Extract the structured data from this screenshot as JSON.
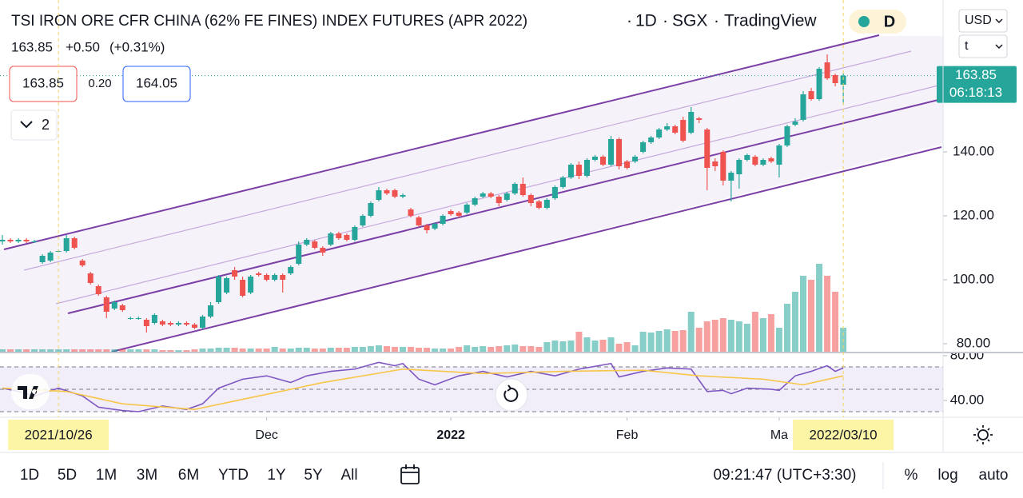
{
  "ui": {
    "symbol": "TSI IRON ORE CFR CHINA (62% FE FINES) INDEX FUTURES (APR 2022)",
    "interval": "1D",
    "exchange": "SGX",
    "source": "TradingView",
    "badge": "D",
    "quote": {
      "last": "163.85",
      "change": "+0.50",
      "change_pct": "(+0.31%)"
    },
    "sell": "163.85",
    "spread": "0.20",
    "buy": "164.05",
    "indicators_count": "2",
    "currency": "USD",
    "unit": "t",
    "price_tag": {
      "price": "163.85",
      "countdown": "06:18:13"
    },
    "ranges": [
      "1D",
      "5D",
      "1M",
      "3M",
      "6M",
      "YTD",
      "1Y",
      "5Y",
      "All"
    ],
    "clock": "09:21:47 (UTC+3:30)",
    "percent": "%",
    "log": "log",
    "auto": "auto"
  },
  "chart_data": {
    "type": "candlestick",
    "up_color": "#26a69a",
    "down_color": "#ef5350",
    "open": [
      112,
      112.5,
      112,
      112.5,
      112,
      105.5,
      106,
      109,
      109,
      113,
      106,
      102,
      98,
      94.5,
      91,
      92,
      88,
      88,
      87.5,
      86.5,
      87,
      86.5,
      86,
      86.5,
      86,
      85,
      88.5,
      93,
      96,
      103,
      100,
      96,
      102,
      101.5,
      100,
      101.5,
      102,
      105,
      111,
      112,
      110,
      111,
      114.5,
      114,
      112.5,
      117,
      120,
      125,
      128,
      128,
      126,
      122,
      119.5,
      117,
      116,
      117.5,
      121.5,
      121,
      121,
      123.5,
      126,
      127,
      126,
      125,
      127,
      130,
      126.5,
      124.5,
      122.5,
      125.5,
      129,
      132,
      136,
      132.5,
      137.5,
      138.5,
      136,
      144,
      137,
      137,
      140,
      143,
      144.5,
      147,
      148,
      150,
      146,
      150.5,
      147,
      137,
      140,
      131,
      133,
      137.5,
      138.5,
      136,
      138,
      136,
      142,
      148.5,
      150,
      159,
      156.5,
      168,
      164,
      161
    ],
    "high": [
      114,
      113,
      113,
      113,
      112.5,
      108,
      109,
      109.5,
      114,
      113.5,
      106.5,
      102.5,
      98.5,
      95,
      93.5,
      92.5,
      88.5,
      88.5,
      88,
      89.5,
      87.5,
      87,
      87,
      87,
      86.5,
      89,
      93,
      101.5,
      101,
      104,
      101,
      101.5,
      102.5,
      102,
      102,
      102,
      104.5,
      112,
      113,
      112.5,
      110.5,
      115,
      115,
      114.5,
      117,
      120.5,
      124.5,
      129,
      128.5,
      128.5,
      127,
      122.5,
      120,
      117.5,
      118,
      120.5,
      122,
      121.5,
      124,
      126,
      127.5,
      127.5,
      126.5,
      127.5,
      130.5,
      132,
      127,
      125,
      125.5,
      129.5,
      132.5,
      136.5,
      137,
      138,
      139,
      139,
      145,
      144.5,
      137.5,
      139,
      143.5,
      145,
      147.5,
      149,
      148.5,
      151,
      154,
      151,
      147.5,
      138,
      140.5,
      134,
      138,
      139.5,
      139,
      138,
      138.5,
      142.5,
      148.5,
      150.5,
      159,
      160,
      166.5,
      170.5,
      164.5,
      164.5
    ],
    "low": [
      111,
      111.5,
      111.5,
      111.5,
      111.5,
      105,
      105.5,
      108.5,
      108.5,
      109.5,
      104,
      98.5,
      95,
      88,
      90.5,
      90,
      87.5,
      87.5,
      83.5,
      86,
      85.5,
      85.5,
      85.5,
      85.5,
      84.5,
      84.5,
      88,
      92.5,
      95.5,
      100,
      94.5,
      95.5,
      101,
      99.5,
      99.5,
      96,
      101.5,
      104.5,
      110.5,
      109.5,
      107.5,
      110.5,
      112.5,
      112,
      112,
      116.5,
      119.5,
      124.5,
      126.5,
      125.5,
      125.5,
      119.5,
      116.5,
      114.5,
      115.5,
      117,
      120,
      119.5,
      120.5,
      123,
      125.5,
      125.5,
      123,
      124.5,
      126.5,
      126,
      123,
      122,
      122,
      125,
      128.5,
      131.5,
      131.5,
      132,
      137,
      135.5,
      135.5,
      134.5,
      134.5,
      136.5,
      139.5,
      142.5,
      144,
      146.5,
      145.5,
      143,
      145.5,
      149,
      128,
      134,
      129.5,
      124.5,
      128.5,
      137,
      135.5,
      135.5,
      136.5,
      132,
      141.5,
      148,
      149.5,
      156,
      156,
      162.5,
      160.5,
      155
    ],
    "close": [
      112.5,
      112,
      112.5,
      112,
      112,
      107.5,
      108.5,
      109,
      113,
      110,
      104.5,
      99,
      95.5,
      90,
      93,
      90.5,
      88,
      88,
      85.5,
      89,
      86,
      86,
      86.5,
      86,
      85,
      88.5,
      92,
      101,
      100.5,
      101,
      95,
      101,
      101.5,
      100,
      101.5,
      100,
      104,
      111,
      112.5,
      110,
      108.5,
      114.5,
      113,
      112.5,
      116.5,
      120,
      124,
      128,
      127,
      126,
      126.5,
      120,
      117,
      115.5,
      117.5,
      120,
      120.5,
      120,
      123.5,
      125.5,
      127,
      126,
      124,
      127,
      130,
      126.5,
      124,
      122.5,
      125,
      129,
      132,
      136,
      132.5,
      137.5,
      138.5,
      136,
      144,
      135.5,
      135,
      138.5,
      143,
      144.5,
      147,
      148,
      146,
      143.5,
      152.5,
      150,
      135,
      135.5,
      131,
      133.5,
      137.5,
      139,
      136,
      137.5,
      137,
      142,
      148,
      149.5,
      158,
      156.5,
      166,
      163,
      161.5,
      163.85
    ],
    "volume": [
      3,
      3,
      3,
      3,
      3,
      3,
      3,
      3,
      3,
      3,
      3,
      3,
      3,
      3,
      3,
      3,
      3,
      3,
      3,
      3,
      2,
      2,
      2,
      2,
      3,
      4,
      4,
      5,
      5,
      5,
      4,
      4,
      4,
      4,
      6,
      4,
      4,
      5,
      5,
      4,
      4,
      5,
      5,
      5,
      6,
      6,
      7,
      8,
      7,
      6,
      6,
      6,
      5,
      5,
      4,
      4,
      4,
      6,
      8,
      6,
      7,
      6,
      7,
      8,
      9,
      7,
      7,
      6,
      12,
      14,
      13,
      14,
      25,
      18,
      14,
      15,
      18,
      10,
      12,
      8,
      25,
      24,
      26,
      28,
      26,
      27,
      50,
      30,
      38,
      40,
      42,
      40,
      38,
      35,
      50,
      42,
      47,
      30,
      60,
      75,
      95,
      90,
      110,
      95,
      75,
      30
    ],
    "ylim": [
      77.5,
      187.5
    ],
    "yticks": [
      {
        "value": 80,
        "label": "80.00"
      },
      {
        "value": 100,
        "label": "100.00"
      },
      {
        "value": 120,
        "label": "120.00"
      },
      {
        "value": 140,
        "label": "140.00"
      }
    ],
    "xticks": [
      {
        "value": 33,
        "label": "Dec"
      },
      {
        "value": 56,
        "label": "2022"
      },
      {
        "value": 78,
        "label": "Feb"
      },
      {
        "value": 97,
        "label": "Ma"
      }
    ],
    "crosshairs": [
      {
        "value": 7,
        "label": "2021/10/26"
      },
      {
        "value": 105,
        "label": "2022/03/10"
      }
    ],
    "lower_pane": {
      "ylim": [
        25,
        82.1
      ],
      "yticks": [
        {
          "value": 40,
          "label": "40.00"
        },
        {
          "value": 80,
          "label": "80.00"
        }
      ],
      "bands": [
        70,
        50,
        30
      ],
      "series": [
        {
          "color": "#7e57c2",
          "x": [
            0,
            2,
            4,
            7,
            10,
            12,
            15,
            17,
            20,
            23,
            25,
            27,
            30,
            33,
            36,
            38,
            41,
            44,
            47,
            49,
            50,
            52,
            54,
            57,
            60,
            63,
            66,
            69,
            72,
            76,
            77,
            80,
            83,
            86,
            88,
            90,
            91,
            93,
            96,
            97,
            99,
            101,
            103,
            104,
            105
          ],
          "values": [
            51,
            48,
            44,
            51,
            44,
            34,
            31,
            30,
            35,
            32,
            37,
            51,
            59,
            62,
            56,
            62,
            66,
            68,
            74,
            71,
            73,
            59,
            54,
            62,
            66,
            61,
            66,
            62,
            68,
            73,
            61,
            66,
            69,
            68,
            48,
            49,
            46,
            51,
            50,
            49,
            62,
            66,
            71,
            66,
            69
          ]
        },
        {
          "color": "#f7c548",
          "x": [
            0,
            8,
            15,
            24,
            30,
            40,
            50,
            60,
            70,
            80,
            87,
            95,
            100,
            105
          ],
          "values": [
            51,
            48,
            37,
            32,
            41,
            56,
            68,
            64,
            66,
            67,
            62,
            59,
            54,
            62
          ]
        }
      ]
    }
  }
}
